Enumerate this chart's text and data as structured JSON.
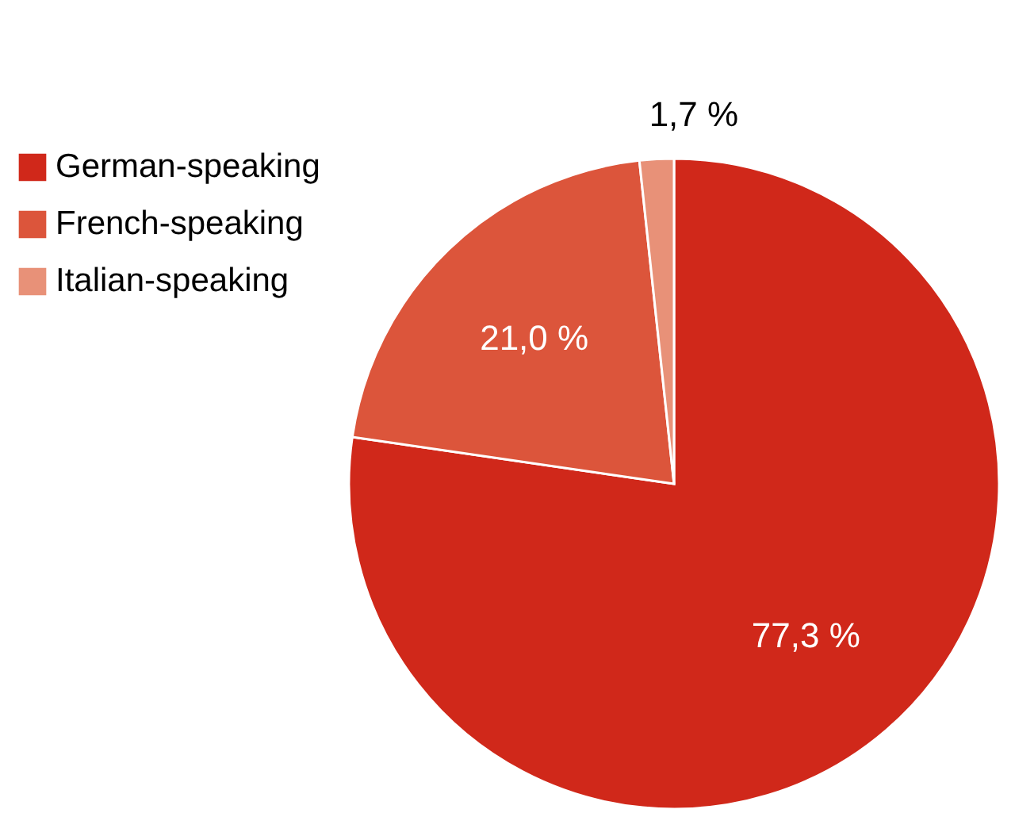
{
  "chart_data": {
    "type": "pie",
    "categories": [
      "German-speaking",
      "French-speaking",
      "Italian-speaking"
    ],
    "values": [
      77.3,
      21.0,
      1.7
    ],
    "value_labels": [
      "77,3 %",
      "21,0 %",
      "1,7 %"
    ],
    "colors": [
      "#d0281a",
      "#dc553b",
      "#e89178"
    ],
    "legend": "top left"
  }
}
